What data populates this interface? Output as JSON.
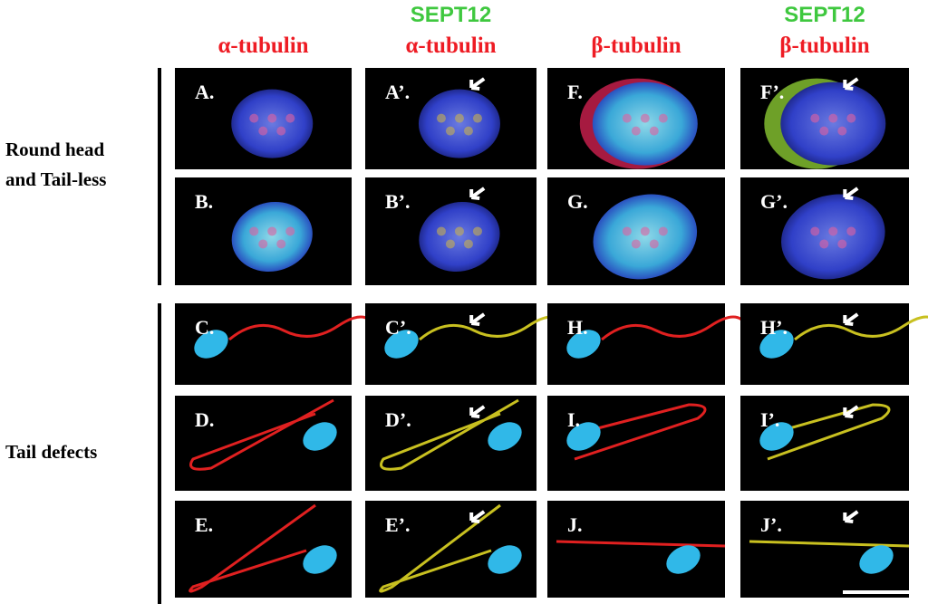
{
  "columns": [
    {
      "lines": [
        "α-tubulin"
      ]
    },
    {
      "lines": [
        "SEPT12",
        "α-tubulin"
      ]
    },
    {
      "lines": [
        "β-tubulin"
      ]
    },
    {
      "lines": [
        "SEPT12",
        "β-tubulin"
      ]
    }
  ],
  "groups": [
    {
      "lines": [
        "Round head",
        "and Tail-less"
      ]
    },
    {
      "lines": [
        "Tail defects"
      ]
    }
  ],
  "panels": [
    [
      "A.",
      "A’.",
      "F.",
      "F’."
    ],
    [
      "B.",
      "B’.",
      "G.",
      "G’."
    ],
    [
      "C.",
      "C’.",
      "H.",
      "H’."
    ],
    [
      "D.",
      "D’.",
      "I.",
      "I’."
    ],
    [
      "E.",
      "E’.",
      "J.",
      "J’."
    ]
  ]
}
